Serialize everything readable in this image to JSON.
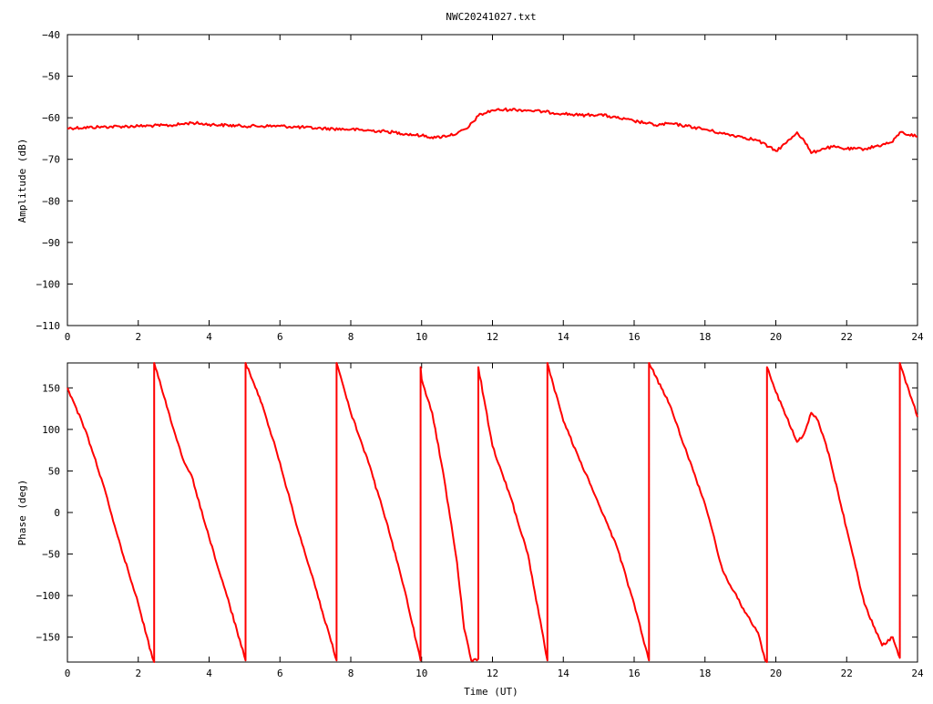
{
  "title": "NWC20241027.txt",
  "colors": {
    "series": "#ff0000",
    "axis": "#000000",
    "background": "#ffffff"
  },
  "chart_data": [
    {
      "type": "line",
      "xlabel": "",
      "ylabel": "Amplitude (dB)",
      "xlim": [
        0,
        24
      ],
      "ylim": [
        -110,
        -40
      ],
      "xticks": [
        0,
        2,
        4,
        6,
        8,
        10,
        12,
        14,
        16,
        18,
        20,
        22,
        24
      ],
      "yticks": [
        -40,
        -50,
        -60,
        -70,
        -80,
        -90,
        -100,
        -110
      ],
      "grid": false,
      "series": [
        {
          "x": [
            0,
            1,
            2,
            3,
            3.5,
            4,
            5,
            6,
            7,
            8,
            9,
            10,
            10.4,
            11,
            11.3,
            11.6,
            12,
            12.5,
            13,
            13.5,
            14,
            14.5,
            15,
            15.5,
            16,
            16.3,
            16.6,
            17,
            17.5,
            18,
            18.5,
            19,
            19.5,
            19.8,
            20,
            20.3,
            20.6,
            20.8,
            21,
            21.3,
            21.6,
            22,
            22.5,
            23,
            23.3,
            23.5,
            24
          ],
          "y": [
            -62.5,
            -62.2,
            -62,
            -61.8,
            -61.2,
            -61.6,
            -62,
            -62,
            -62.5,
            -62.8,
            -63.3,
            -64.3,
            -64.8,
            -63.8,
            -62.5,
            -59.5,
            -58.2,
            -58,
            -58.2,
            -58.6,
            -59,
            -59.4,
            -59.2,
            -60,
            -60.8,
            -61.2,
            -61.8,
            -61.4,
            -62,
            -62.8,
            -63.8,
            -64.5,
            -65.5,
            -67,
            -68,
            -66,
            -63.5,
            -65.5,
            -68.5,
            -67.5,
            -67,
            -67.5,
            -67.5,
            -66.5,
            -65.8,
            -63.5,
            -64.5
          ]
        }
      ]
    },
    {
      "type": "line",
      "xlabel": "Time (UT)",
      "ylabel": "Phase (deg)",
      "xlim": [
        0,
        24
      ],
      "ylim": [
        -180,
        180
      ],
      "xticks": [
        0,
        2,
        4,
        6,
        8,
        10,
        12,
        14,
        16,
        18,
        20,
        22,
        24
      ],
      "yticks": [
        150,
        100,
        50,
        0,
        -50,
        -100,
        -150
      ],
      "grid": false,
      "series": [
        {
          "x": [
            0,
            0.5,
            1,
            1.5,
            2,
            2.4,
            2.45,
            2.45,
            3,
            3.3,
            3.5,
            4,
            4.5,
            5.03,
            5.03,
            5.5,
            6,
            6.5,
            7,
            7.6,
            7.6,
            8,
            8.5,
            9,
            9.5,
            9.97,
            9.97,
            10,
            10.3,
            10.6,
            11,
            11.2,
            11.4,
            11.6,
            11.6,
            12,
            12.5,
            13,
            13.55,
            13.55,
            14,
            14.5,
            15,
            15.5,
            16,
            16.4,
            16.42,
            16.42,
            17,
            17.5,
            18,
            18.5,
            19,
            19.5,
            19.7,
            19.75,
            19.75,
            20,
            20.3,
            20.6,
            20.8,
            21,
            21.2,
            21.5,
            22,
            22.5,
            23,
            23.3,
            23.5,
            23.5,
            24
          ],
          "y": [
            150,
            100,
            35,
            -40,
            -110,
            -175,
            -180,
            180,
            100,
            60,
            45,
            -30,
            -100,
            -178,
            180,
            130,
            60,
            -20,
            -90,
            -178,
            180,
            120,
            60,
            -10,
            -90,
            -178,
            175,
            160,
            120,
            50,
            -60,
            -140,
            -178,
            -176,
            175,
            80,
            20,
            -50,
            -178,
            180,
            110,
            60,
            10,
            -40,
            -110,
            -175,
            -178,
            180,
            130,
            70,
            10,
            -70,
            -110,
            -145,
            -178,
            -180,
            175,
            145,
            115,
            85,
            95,
            120,
            110,
            70,
            -20,
            -110,
            -160,
            -150,
            -175,
            180,
            115
          ]
        }
      ]
    }
  ]
}
